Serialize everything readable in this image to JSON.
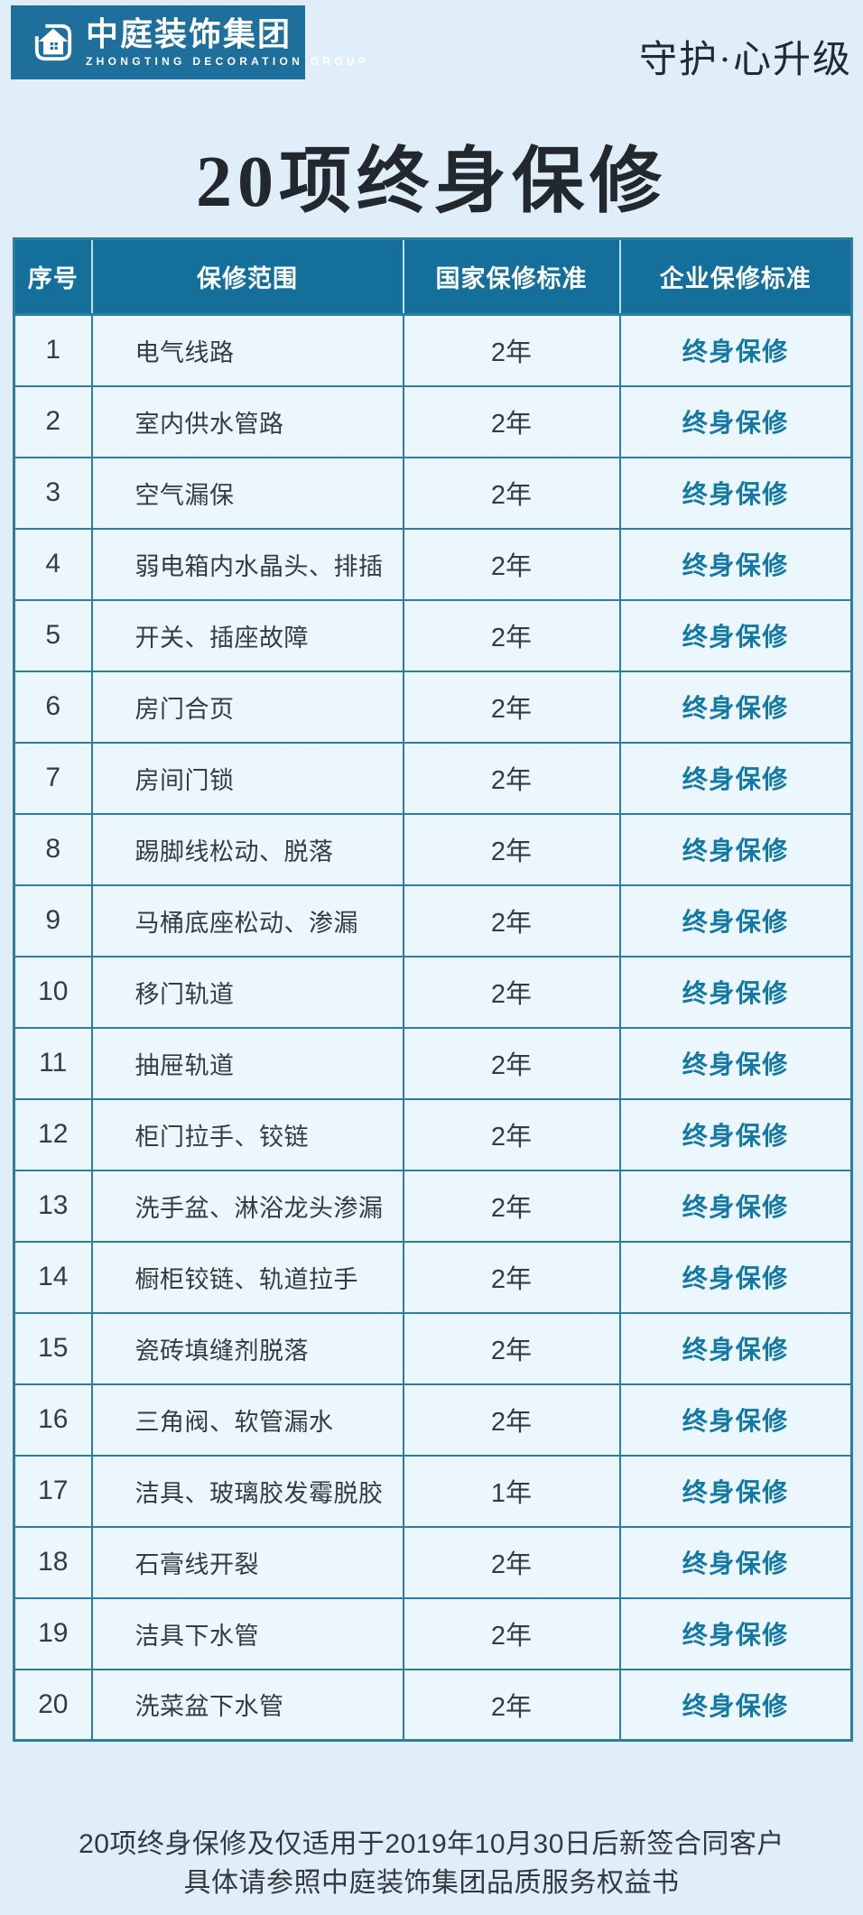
{
  "header": {
    "logo": {
      "company_name": "中庭装饰集团",
      "company_name_en": "ZHONGTING DECORATION GROUP"
    },
    "slogan": "守护·心升级"
  },
  "title": "20项终身保修",
  "table": {
    "columns": [
      "序号",
      "保修范围",
      "国家保修标准",
      "企业保修标准"
    ],
    "rows": [
      {
        "no": "1",
        "scope": "电气线路",
        "national": "2年",
        "enterprise": "终身保修"
      },
      {
        "no": "2",
        "scope": "室内供水管路",
        "national": "2年",
        "enterprise": "终身保修"
      },
      {
        "no": "3",
        "scope": "空气漏保",
        "national": "2年",
        "enterprise": "终身保修"
      },
      {
        "no": "4",
        "scope": "弱电箱内水晶头、排插",
        "national": "2年",
        "enterprise": "终身保修"
      },
      {
        "no": "5",
        "scope": "开关、插座故障",
        "national": "2年",
        "enterprise": "终身保修"
      },
      {
        "no": "6",
        "scope": "房门合页",
        "national": "2年",
        "enterprise": "终身保修"
      },
      {
        "no": "7",
        "scope": "房间门锁",
        "national": "2年",
        "enterprise": "终身保修"
      },
      {
        "no": "8",
        "scope": "踢脚线松动、脱落",
        "national": "2年",
        "enterprise": "终身保修"
      },
      {
        "no": "9",
        "scope": "马桶底座松动、渗漏",
        "national": "2年",
        "enterprise": "终身保修"
      },
      {
        "no": "10",
        "scope": "移门轨道",
        "national": "2年",
        "enterprise": "终身保修"
      },
      {
        "no": "11",
        "scope": "抽屉轨道",
        "national": "2年",
        "enterprise": "终身保修"
      },
      {
        "no": "12",
        "scope": "柜门拉手、铰链",
        "national": "2年",
        "enterprise": "终身保修"
      },
      {
        "no": "13",
        "scope": "洗手盆、淋浴龙头渗漏",
        "national": "2年",
        "enterprise": "终身保修"
      },
      {
        "no": "14",
        "scope": "橱柜铰链、轨道拉手",
        "national": "2年",
        "enterprise": "终身保修"
      },
      {
        "no": "15",
        "scope": "瓷砖填缝剂脱落",
        "national": "2年",
        "enterprise": "终身保修"
      },
      {
        "no": "16",
        "scope": "三角阀、软管漏水",
        "national": "2年",
        "enterprise": "终身保修"
      },
      {
        "no": "17",
        "scope": "洁具、玻璃胶发霉脱胶",
        "national": "1年",
        "enterprise": "终身保修"
      },
      {
        "no": "18",
        "scope": "石膏线开裂",
        "national": "2年",
        "enterprise": "终身保修"
      },
      {
        "no": "19",
        "scope": "洁具下水管",
        "national": "2年",
        "enterprise": "终身保修"
      },
      {
        "no": "20",
        "scope": "洗菜盆下水管",
        "national": "2年",
        "enterprise": "终身保修"
      }
    ]
  },
  "footer": {
    "line1": "20项终身保修及仅适用于2019年10月30日后新签合同客户",
    "line2": "具体请参照中庭装饰集团品质服务权益书"
  },
  "colors": {
    "table_header_teal": "#14709b",
    "logo_teal": "#1e6f9c",
    "border_teal": "#2a7ea4",
    "row_background": "#ecf7fd",
    "enterprise_text_teal": "#1379a4",
    "page_background": "#dfeef8"
  }
}
